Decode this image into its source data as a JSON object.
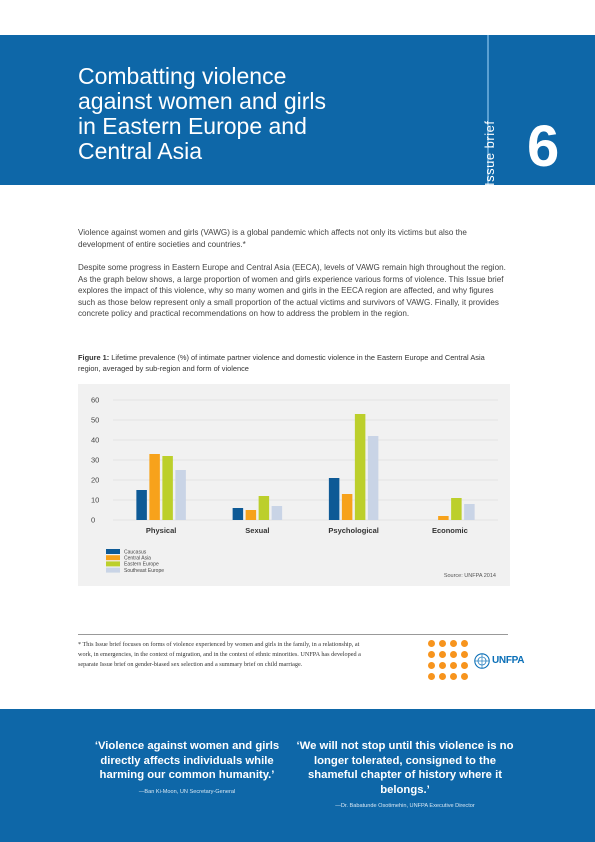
{
  "header": {
    "title_lines": [
      "Combatting violence",
      "against women and girls",
      "in Eastern Europe and",
      "Central Asia"
    ],
    "series_label": "Issue brief",
    "number": "6"
  },
  "intro": {
    "p1": "Violence against women and girls (VAWG) is a global pandemic which affects not only its victims but also the development of entire societies and countries.*",
    "p2": "Despite some progress in Eastern Europe and Central Asia (EECA), levels of VAWG remain high throughout the region. As the graph below shows, a large proportion of women and girls experience various forms of violence. This Issue brief explores the impact of this violence, why so many women and girls in the EECA region are affected, and why figures such as those below represent only a small proportion of the actual victims and survivors of VAWG. Finally, it provides concrete policy and practical recommendations on how to address the problem in the region."
  },
  "figure": {
    "label": "Figure 1:",
    "caption": " Lifetime prevalence (%) of intimate partner violence and domestic violence in the Eastern Europe and Central Asia region, averaged by sub-region and form of violence",
    "source": "Source: UNFPA 2014"
  },
  "chart_data": {
    "type": "bar",
    "categories": [
      "Physical",
      "Sexual",
      "Psychological",
      "Economic"
    ],
    "series": [
      {
        "name": "Caucasus",
        "color": "#0e5a96",
        "values": [
          15,
          6,
          21,
          null
        ]
      },
      {
        "name": "Central Asia",
        "color": "#f7a21b",
        "values": [
          33,
          5,
          13,
          2
        ]
      },
      {
        "name": "Eastern Europe",
        "color": "#bccf2b",
        "values": [
          32,
          12,
          53,
          11
        ]
      },
      {
        "name": "Southeast Europe",
        "color": "#c9d4e6",
        "values": [
          25,
          7,
          42,
          8
        ]
      }
    ],
    "yticks": [
      0,
      10,
      20,
      30,
      40,
      50,
      60
    ],
    "ylim": [
      0,
      60
    ],
    "grid": true,
    "legend_position": "bottom-left"
  },
  "footnote": "* This Issue brief focuses on forms of violence experienced by women and girls in the family, in a relationship, at work, in emergencies, in the context of migration, and in the context of ethnic minorities. UNFPA has developed a separate Issue brief on gender-biased sex selection and a summary brief on child marriage.",
  "logo": {
    "brand": "UNFPA",
    "color": "#f7941d"
  },
  "quotes": [
    {
      "text": "‘Violence against women and girls directly affects individuals while harming our common humanity.’",
      "attribution": "—Ban Ki-Moon, UN Secretary-General"
    },
    {
      "text": "‘We will not stop until this violence is no longer tolerated, consigned to the shameful chapter of history where it belongs.’",
      "attribution": "—Dr. Babatunde Osotimehin, UNFPA Executive Director"
    }
  ],
  "colors": {
    "brand_blue": "#0e67a8",
    "accent_orange": "#f7941d"
  }
}
